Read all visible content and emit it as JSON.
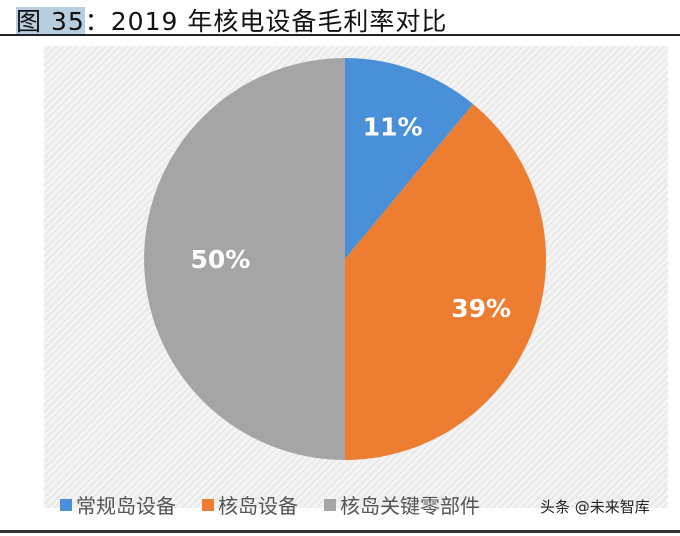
{
  "title": {
    "figure": "图 35",
    "text": "：2019 年核电设备毛利率对比"
  },
  "watermark": "头条 @未来智库",
  "chart_data": {
    "type": "pie",
    "categories": [
      "常规岛设备",
      "核岛设备",
      "核岛关键零部件"
    ],
    "values": [
      11,
      39,
      50
    ],
    "labels": [
      "11%",
      "39%",
      "50%"
    ],
    "colors": [
      "#4a90d9",
      "#ed7d31",
      "#a5a5a5"
    ],
    "start": "top",
    "direction": "clockwise",
    "legend": "bottom"
  }
}
